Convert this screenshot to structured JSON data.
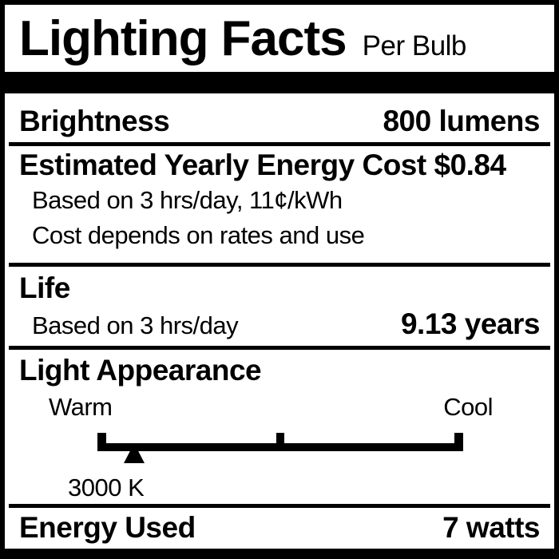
{
  "header": {
    "title": "Lighting Facts",
    "subtitle": "Per Bulb"
  },
  "brightness": {
    "name": "Brightness",
    "value": "800 lumens"
  },
  "energy_cost": {
    "heading": "Estimated Yearly Energy Cost $0.84",
    "basis": "Based on 3 hrs/day, 11¢/kWh",
    "note": "Cost depends on rates and use"
  },
  "life": {
    "name": "Life",
    "basis": "Based on 3 hrs/day",
    "value": "9.13 years"
  },
  "light_appearance": {
    "name": "Light Appearance",
    "warm_label": "Warm",
    "cool_label": "Cool",
    "kelvin_label": "3000 K",
    "color_temperature_k": 3000,
    "marker_left": "10%"
  },
  "energy_used": {
    "name": "Energy Used",
    "value": "7 watts"
  },
  "colors": {
    "ink": "#000000",
    "background": "#ffffff"
  }
}
